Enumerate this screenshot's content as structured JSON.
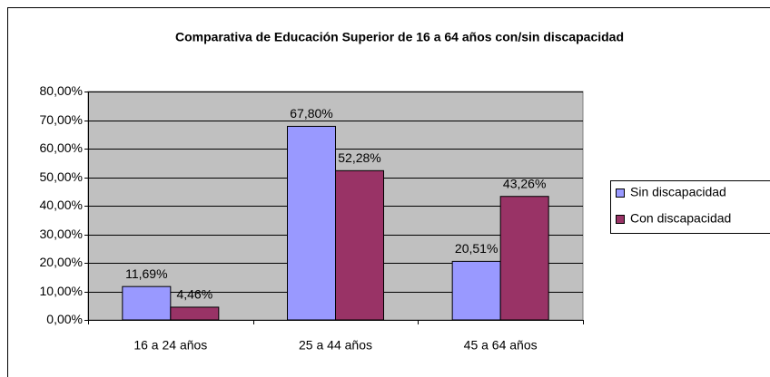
{
  "chart_data": {
    "type": "bar",
    "title": "Comparativa de Educación Superior de 16 a 64 años con/sin discapacidad",
    "categories": [
      "16 a 24 años",
      "25 a 44 años",
      "45 a 64 años"
    ],
    "series": [
      {
        "name": "Sin discapacidad",
        "color": "#9999ff",
        "values": [
          11.69,
          67.8,
          20.51
        ],
        "value_labels": [
          "11,69%",
          "67,80%",
          "20,51%"
        ]
      },
      {
        "name": "Con discapacidad",
        "color": "#993366",
        "values": [
          4.46,
          52.28,
          43.26
        ],
        "value_labels": [
          "4,46%",
          "52,28%",
          "43,26%"
        ]
      }
    ],
    "ylim": [
      0,
      80
    ],
    "yticks": [
      {
        "value": 0,
        "label": "0,00%"
      },
      {
        "value": 10,
        "label": "10,00%"
      },
      {
        "value": 20,
        "label": "20,00%"
      },
      {
        "value": 30,
        "label": "30,00%"
      },
      {
        "value": 40,
        "label": "40,00%"
      },
      {
        "value": 50,
        "label": "50,00%"
      },
      {
        "value": 60,
        "label": "60,00%"
      },
      {
        "value": 70,
        "label": "70,00%"
      },
      {
        "value": 80,
        "label": "80,00%"
      }
    ],
    "grid": true,
    "legend": "right"
  }
}
